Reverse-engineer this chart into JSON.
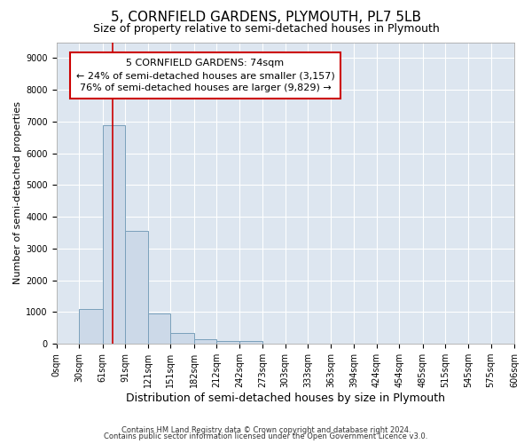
{
  "title": "5, CORNFIELD GARDENS, PLYMOUTH, PL7 5LB",
  "subtitle": "Size of property relative to semi-detached houses in Plymouth",
  "xlabel": "Distribution of semi-detached houses by size in Plymouth",
  "ylabel": "Number of semi-detached properties",
  "bin_edges": [
    0,
    30,
    61,
    91,
    121,
    151,
    182,
    212,
    242,
    273,
    303,
    333,
    363,
    394,
    424,
    454,
    485,
    515,
    545,
    575,
    606
  ],
  "bin_counts": [
    0,
    1100,
    6880,
    3550,
    950,
    330,
    150,
    100,
    100,
    0,
    0,
    0,
    0,
    0,
    0,
    0,
    0,
    0,
    0,
    0
  ],
  "bar_color": "#ccd9e8",
  "bar_edge_color": "#7aa0bb",
  "property_size": 74,
  "vline_color": "#cc0000",
  "annotation_line1": "5 CORNFIELD GARDENS: 74sqm",
  "annotation_line2": "← 24% of semi-detached houses are smaller (3,157)",
  "annotation_line3": "76% of semi-detached houses are larger (9,829) →",
  "annotation_box_color": "#cc0000",
  "ylim": [
    0,
    9500
  ],
  "yticks": [
    0,
    1000,
    2000,
    3000,
    4000,
    5000,
    6000,
    7000,
    8000,
    9000
  ],
  "background_color": "#dde6f0",
  "footer_line1": "Contains HM Land Registry data © Crown copyright and database right 2024.",
  "footer_line2": "Contains public sector information licensed under the Open Government Licence v3.0.",
  "title_fontsize": 11,
  "subtitle_fontsize": 9,
  "tick_label_fontsize": 7,
  "ylabel_fontsize": 8,
  "xlabel_fontsize": 9,
  "annotation_fontsize": 8,
  "footer_fontsize": 6
}
